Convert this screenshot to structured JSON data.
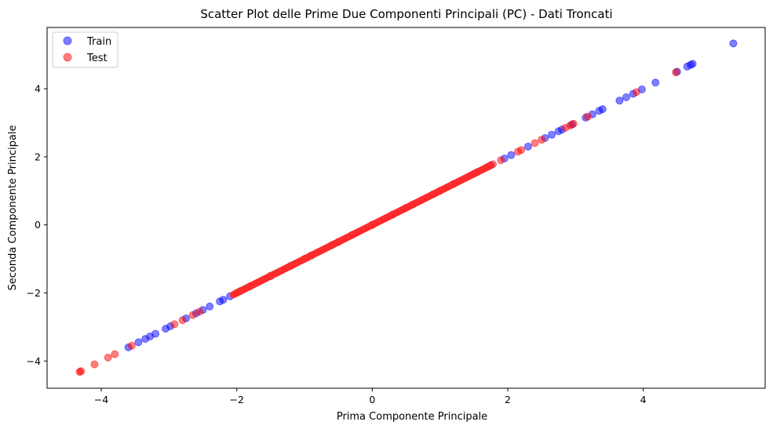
{
  "chart_data": {
    "type": "scatter",
    "title": "Scatter Plot delle Prime Due Componenti Principali (PC) - Dati Troncati",
    "xlabel": "Prima Componente Principale",
    "ylabel": "Seconda Componente Principale",
    "xlim": [
      -4.8,
      5.8
    ],
    "ylim": [
      -4.8,
      5.8
    ],
    "xticks": [
      -4,
      -2,
      0,
      2,
      4
    ],
    "yticks": [
      -4,
      -2,
      0,
      2,
      4
    ],
    "xtick_labels": [
      "−4",
      "−2",
      "0",
      "2",
      "4"
    ],
    "ytick_labels": [
      "−4",
      "−2",
      "0",
      "2",
      "4"
    ],
    "grid": false,
    "legend_position": "top-left",
    "series": [
      {
        "name": "Train",
        "color": "#0000ff",
        "alpha": 0.5,
        "points": [
          [
            -3.6,
            -3.6
          ],
          [
            -3.45,
            -3.45
          ],
          [
            -3.35,
            -3.35
          ],
          [
            -3.28,
            -3.28
          ],
          [
            -3.2,
            -3.2
          ],
          [
            -3.05,
            -3.05
          ],
          [
            -2.98,
            -2.98
          ],
          [
            -2.75,
            -2.75
          ],
          [
            -2.6,
            -2.6
          ],
          [
            -2.5,
            -2.5
          ],
          [
            -2.4,
            -2.4
          ],
          [
            -2.25,
            -2.25
          ],
          [
            -2.2,
            -2.2
          ],
          [
            -2.1,
            -2.1
          ],
          [
            -1.95,
            -1.95
          ],
          [
            -1.5,
            -1.5
          ],
          [
            -1.2,
            -1.2
          ],
          [
            -0.9,
            -0.9
          ],
          [
            -0.6,
            -0.6
          ],
          [
            -0.3,
            -0.3
          ],
          [
            0.0,
            0.0
          ],
          [
            0.3,
            0.3
          ],
          [
            0.6,
            0.6
          ],
          [
            0.9,
            0.9
          ],
          [
            1.2,
            1.2
          ],
          [
            1.55,
            1.55
          ],
          [
            1.7,
            1.7
          ],
          [
            1.75,
            1.75
          ],
          [
            1.95,
            1.95
          ],
          [
            2.05,
            2.05
          ],
          [
            2.3,
            2.3
          ],
          [
            2.55,
            2.55
          ],
          [
            2.65,
            2.65
          ],
          [
            2.75,
            2.75
          ],
          [
            2.8,
            2.8
          ],
          [
            2.95,
            2.95
          ],
          [
            3.15,
            3.15
          ],
          [
            3.25,
            3.25
          ],
          [
            3.35,
            3.35
          ],
          [
            3.4,
            3.4
          ],
          [
            3.65,
            3.65
          ],
          [
            3.75,
            3.75
          ],
          [
            3.85,
            3.85
          ],
          [
            3.98,
            3.98
          ],
          [
            4.18,
            4.18
          ],
          [
            4.5,
            4.5
          ],
          [
            4.65,
            4.65
          ],
          [
            4.7,
            4.7
          ],
          [
            4.73,
            4.73
          ],
          [
            5.33,
            5.33
          ]
        ]
      },
      {
        "name": "Test",
        "color": "#ff0000",
        "alpha": 0.5,
        "points": [
          [
            -4.32,
            -4.32
          ],
          [
            -4.3,
            -4.3
          ],
          [
            -4.1,
            -4.1
          ],
          [
            -3.9,
            -3.9
          ],
          [
            -3.8,
            -3.8
          ],
          [
            -3.55,
            -3.55
          ],
          [
            -2.92,
            -2.92
          ],
          [
            -2.8,
            -2.8
          ],
          [
            -2.65,
            -2.65
          ],
          [
            -2.55,
            -2.55
          ],
          [
            -2.0,
            -2.0
          ],
          [
            -1.8,
            -1.8
          ],
          [
            -1.5,
            -1.5
          ],
          [
            -1.0,
            -1.0
          ],
          [
            -0.5,
            -0.5
          ],
          [
            0.0,
            0.0
          ],
          [
            0.5,
            0.5
          ],
          [
            1.0,
            1.0
          ],
          [
            1.5,
            1.5
          ],
          [
            1.78,
            1.78
          ],
          [
            1.9,
            1.9
          ],
          [
            2.15,
            2.15
          ],
          [
            2.2,
            2.2
          ],
          [
            2.4,
            2.4
          ],
          [
            2.5,
            2.5
          ],
          [
            2.85,
            2.85
          ],
          [
            2.92,
            2.92
          ],
          [
            2.97,
            2.97
          ],
          [
            3.18,
            3.18
          ],
          [
            3.9,
            3.9
          ],
          [
            4.48,
            4.48
          ]
        ]
      }
    ]
  }
}
